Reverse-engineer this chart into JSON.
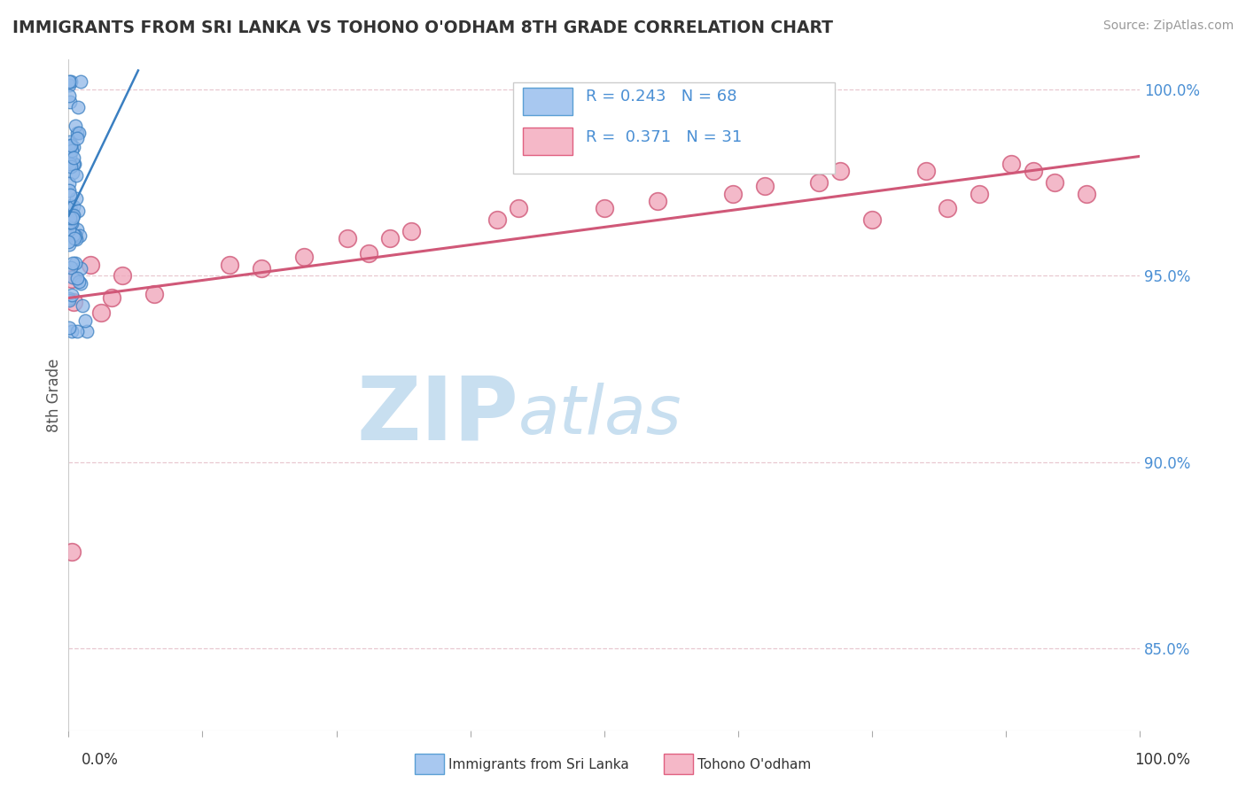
{
  "title": "IMMIGRANTS FROM SRI LANKA VS TOHONO O'ODHAM 8TH GRADE CORRELATION CHART",
  "source": "Source: ZipAtlas.com",
  "ylabel": "8th Grade",
  "x_min": 0.0,
  "x_max": 1.0,
  "y_min": 0.828,
  "y_max": 1.008,
  "y_ticks": [
    0.85,
    0.9,
    0.95,
    1.0
  ],
  "y_tick_labels": [
    "85.0%",
    "90.0%",
    "95.0%",
    "100.0%"
  ],
  "legend_entries": [
    {
      "label": "Immigrants from Sri Lanka",
      "R": 0.243,
      "N": 68,
      "color": "#a8c8f0",
      "border": "#5a9fd4"
    },
    {
      "label": "Tohono O'odham",
      "R": 0.371,
      "N": 31,
      "color": "#f5b8c8",
      "border": "#e06080"
    }
  ],
  "watermark_zip": "ZIP",
  "watermark_atlas": "atlas",
  "watermark_color_zip": "#c8dff0",
  "watermark_color_atlas": "#c8dff0",
  "blue_color": "#3a7fc1",
  "blue_fill": "#90b8e8",
  "pink_color": "#d05878",
  "pink_fill": "#f0a8bc",
  "grid_color": "#e8c8d0",
  "grid_style": "--",
  "pink_line_x0": 0.0,
  "pink_line_x1": 1.0,
  "pink_line_y0": 0.944,
  "pink_line_y1": 0.982,
  "blue_line_x0": 0.0,
  "blue_line_x1": 0.065,
  "blue_line_y0": 0.966,
  "blue_line_y1": 1.005,
  "blue_dot_size": 110,
  "pink_dot_size": 200
}
